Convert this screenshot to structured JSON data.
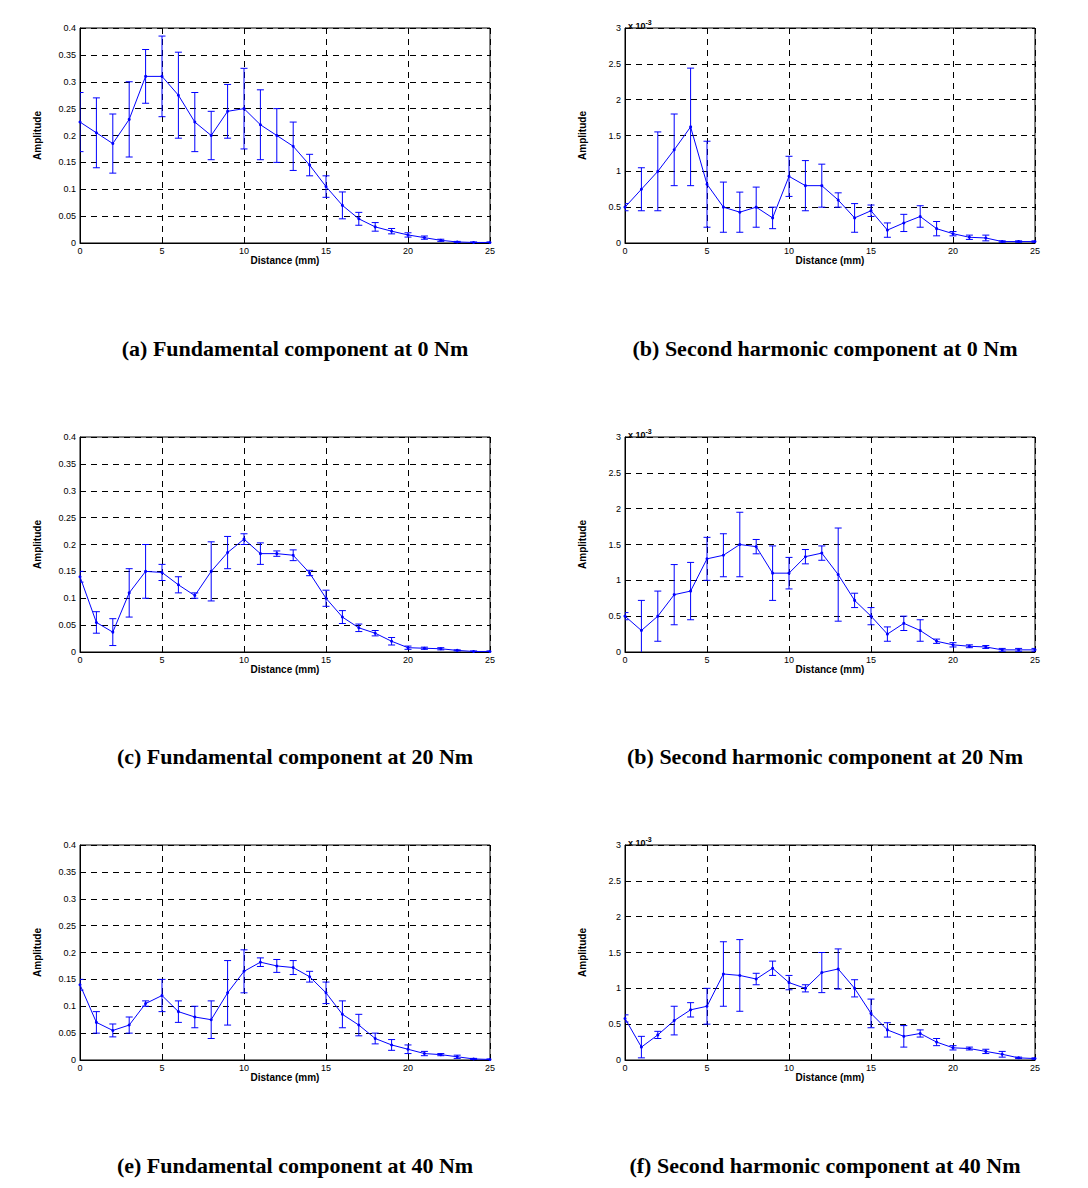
{
  "chart_data": [
    {
      "type": "line",
      "title": "(a) Fundamental component at 0 Nm",
      "x_label": "Distance (mm)",
      "y_label": "Amplitude",
      "x": [
        0,
        1,
        2,
        3,
        4,
        5,
        6,
        7,
        8,
        9,
        10,
        11,
        12,
        13,
        14,
        15,
        16,
        17,
        18,
        19,
        20,
        21,
        22,
        23,
        24,
        25
      ],
      "values": [
        0.225,
        0.205,
        0.185,
        0.23,
        0.31,
        0.31,
        0.275,
        0.225,
        0.2,
        0.245,
        0.25,
        0.22,
        0.2,
        0.18,
        0.145,
        0.105,
        0.07,
        0.045,
        0.03,
        0.022,
        0.015,
        0.01,
        0.005,
        0.002,
        0.001,
        0.001
      ],
      "errors": [
        0.055,
        0.065,
        0.055,
        0.07,
        0.05,
        0.075,
        0.08,
        0.055,
        0.045,
        0.05,
        0.075,
        0.065,
        0.05,
        0.045,
        0.02,
        0.02,
        0.025,
        0.012,
        0.008,
        0.005,
        0.004,
        0.003,
        0.002,
        0.001,
        0.001,
        0.001
      ],
      "color": "#0000ff",
      "marker": "dot",
      "grid": true,
      "xlim": [
        0,
        25
      ],
      "xticks": [
        0,
        5,
        10,
        15,
        20,
        25
      ],
      "ylim": [
        0,
        0.4
      ],
      "yticks": [
        0,
        0.05,
        0.1,
        0.15,
        0.2,
        0.25,
        0.3,
        0.35,
        0.4
      ]
    },
    {
      "type": "line",
      "title": "(b) Second harmonic component at 0 Nm",
      "x_label": "Distance (mm)",
      "y_label": "Amplitude",
      "annotation": {
        "text": "x 10",
        "superscript": "-3"
      },
      "x": [
        0,
        1,
        2,
        3,
        4,
        5,
        6,
        7,
        8,
        9,
        10,
        11,
        12,
        13,
        14,
        15,
        16,
        17,
        18,
        19,
        20,
        21,
        22,
        23,
        24,
        25
      ],
      "values": [
        0.5,
        0.75,
        1.0,
        1.3,
        1.62,
        0.82,
        0.5,
        0.43,
        0.5,
        0.35,
        0.93,
        0.8,
        0.8,
        0.6,
        0.35,
        0.45,
        0.18,
        0.28,
        0.37,
        0.2,
        0.13,
        0.08,
        0.07,
        0.02,
        0.02,
        0.02
      ],
      "errors": [
        0.05,
        0.3,
        0.55,
        0.5,
        0.82,
        0.6,
        0.35,
        0.28,
        0.28,
        0.15,
        0.28,
        0.35,
        0.3,
        0.1,
        0.2,
        0.08,
        0.1,
        0.12,
        0.15,
        0.1,
        0.03,
        0.03,
        0.04,
        0.01,
        0.01,
        0.01
      ],
      "color": "#0000ff",
      "marker": "dot",
      "grid": true,
      "xlim": [
        0,
        25
      ],
      "xticks": [
        0,
        5,
        10,
        15,
        20,
        25
      ],
      "ylim": [
        0,
        3
      ],
      "yticks": [
        0,
        0.5,
        1,
        1.5,
        2,
        2.5,
        3
      ]
    },
    {
      "type": "line",
      "title": "(c) Fundamental component at 20 Nm",
      "x_label": "Distance (mm)",
      "y_label": "Amplitude",
      "x": [
        0,
        1,
        2,
        3,
        4,
        5,
        6,
        7,
        8,
        9,
        10,
        11,
        12,
        13,
        14,
        15,
        16,
        17,
        18,
        19,
        20,
        21,
        22,
        23,
        24,
        25
      ],
      "values": [
        0.14,
        0.055,
        0.037,
        0.11,
        0.15,
        0.148,
        0.125,
        0.105,
        0.15,
        0.185,
        0.21,
        0.183,
        0.183,
        0.18,
        0.147,
        0.1,
        0.065,
        0.045,
        0.035,
        0.02,
        0.008,
        0.007,
        0.006,
        0.003,
        0.001,
        0.001
      ],
      "errors": [
        0.01,
        0.02,
        0.025,
        0.045,
        0.05,
        0.015,
        0.015,
        0.005,
        0.055,
        0.03,
        0.01,
        0.02,
        0.005,
        0.01,
        0.005,
        0.015,
        0.012,
        0.007,
        0.005,
        0.007,
        0.003,
        0.002,
        0.002,
        0.001,
        0.001,
        0.001
      ],
      "color": "#0000ff",
      "marker": "dot",
      "grid": true,
      "xlim": [
        0,
        25
      ],
      "xticks": [
        0,
        5,
        10,
        15,
        20,
        25
      ],
      "ylim": [
        0,
        0.4
      ],
      "yticks": [
        0,
        0.05,
        0.1,
        0.15,
        0.2,
        0.25,
        0.3,
        0.35,
        0.4
      ]
    },
    {
      "type": "line",
      "title": "(b) Second harmonic component at 20 Nm",
      "x_label": "Distance (mm)",
      "y_label": "Amplitude",
      "annotation": {
        "text": "x 10",
        "superscript": "-3"
      },
      "x": [
        0,
        1,
        2,
        3,
        4,
        5,
        6,
        7,
        8,
        9,
        10,
        11,
        12,
        13,
        14,
        15,
        16,
        17,
        18,
        19,
        20,
        21,
        22,
        23,
        24,
        25
      ],
      "values": [
        0.5,
        0.3,
        0.5,
        0.8,
        0.85,
        1.3,
        1.35,
        1.5,
        1.47,
        1.1,
        1.1,
        1.33,
        1.38,
        1.08,
        0.72,
        0.5,
        0.25,
        0.4,
        0.3,
        0.15,
        0.1,
        0.08,
        0.07,
        0.03,
        0.03,
        0.03
      ],
      "errors": [
        0.05,
        0.42,
        0.35,
        0.42,
        0.4,
        0.3,
        0.3,
        0.45,
        0.1,
        0.38,
        0.22,
        0.1,
        0.1,
        0.65,
        0.1,
        0.12,
        0.1,
        0.1,
        0.15,
        0.03,
        0.03,
        0.02,
        0.02,
        0.02,
        0.02,
        0.02
      ],
      "color": "#0000ff",
      "marker": "dot",
      "grid": true,
      "xlim": [
        0,
        25
      ],
      "xticks": [
        0,
        5,
        10,
        15,
        20,
        25
      ],
      "ylim": [
        0,
        3
      ],
      "yticks": [
        0,
        0.5,
        1,
        1.5,
        2,
        2.5,
        3
      ]
    },
    {
      "type": "line",
      "title": "(e) Fundamental component at 40 Nm",
      "x_label": "Distance (mm)",
      "y_label": "Amplitude",
      "x": [
        0,
        1,
        2,
        3,
        4,
        5,
        6,
        7,
        8,
        9,
        10,
        11,
        12,
        13,
        14,
        15,
        16,
        17,
        18,
        19,
        20,
        21,
        22,
        23,
        24,
        25
      ],
      "values": [
        0.14,
        0.07,
        0.055,
        0.065,
        0.105,
        0.12,
        0.09,
        0.08,
        0.075,
        0.125,
        0.165,
        0.182,
        0.175,
        0.172,
        0.155,
        0.125,
        0.085,
        0.065,
        0.04,
        0.028,
        0.02,
        0.012,
        0.01,
        0.006,
        0.002,
        0.001
      ],
      "errors": [
        0.01,
        0.02,
        0.012,
        0.015,
        0.005,
        0.03,
        0.02,
        0.02,
        0.035,
        0.06,
        0.04,
        0.008,
        0.012,
        0.013,
        0.01,
        0.02,
        0.025,
        0.02,
        0.01,
        0.01,
        0.008,
        0.004,
        0.002,
        0.003,
        0.001,
        0.001
      ],
      "color": "#0000ff",
      "marker": "dot",
      "grid": true,
      "xlim": [
        0,
        25
      ],
      "xticks": [
        0,
        5,
        10,
        15,
        20,
        25
      ],
      "ylim": [
        0,
        0.4
      ],
      "yticks": [
        0,
        0.05,
        0.1,
        0.15,
        0.2,
        0.25,
        0.3,
        0.35,
        0.4
      ]
    },
    {
      "type": "line",
      "title": "(f) Second harmonic component at 40 Nm",
      "x_label": "Distance (mm)",
      "y_label": "Amplitude",
      "annotation": {
        "text": "x 10",
        "superscript": "-3"
      },
      "x": [
        0,
        1,
        2,
        3,
        4,
        5,
        6,
        7,
        8,
        9,
        10,
        11,
        12,
        13,
        14,
        15,
        16,
        17,
        18,
        19,
        20,
        21,
        22,
        23,
        24,
        25
      ],
      "values": [
        0.58,
        0.18,
        0.35,
        0.55,
        0.7,
        0.75,
        1.2,
        1.18,
        1.13,
        1.28,
        1.08,
        1.0,
        1.22,
        1.27,
        1.0,
        0.65,
        0.42,
        0.33,
        0.37,
        0.25,
        0.17,
        0.16,
        0.12,
        0.08,
        0.03,
        0.02
      ],
      "errors": [
        0.05,
        0.15,
        0.05,
        0.2,
        0.1,
        0.25,
        0.45,
        0.5,
        0.08,
        0.1,
        0.1,
        0.05,
        0.28,
        0.28,
        0.12,
        0.2,
        0.1,
        0.15,
        0.05,
        0.05,
        0.03,
        0.02,
        0.03,
        0.04,
        0.01,
        0.01
      ],
      "color": "#0000ff",
      "marker": "dot",
      "grid": true,
      "xlim": [
        0,
        25
      ],
      "xticks": [
        0,
        5,
        10,
        15,
        20,
        25
      ],
      "ylim": [
        0,
        3
      ],
      "yticks": [
        0,
        0.5,
        1,
        1.5,
        2,
        2.5,
        3
      ]
    }
  ]
}
